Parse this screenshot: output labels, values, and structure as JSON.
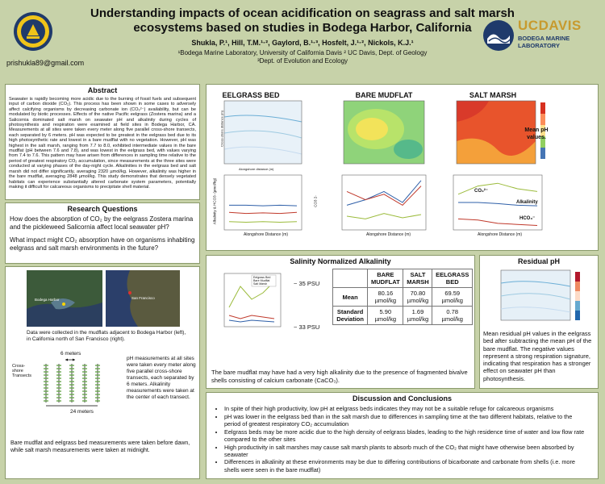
{
  "header": {
    "title": "Understanding impacts of ocean acidification on seagrass and salt marsh ecosystems based on studies in Bodega Harbor, California",
    "authors": "Shukla, P.¹, Hill, T.M.¹·², Gaylord, B.¹·³, Hosfelt, J.¹·², Nickols, K.J.¹",
    "affiliation1": "¹Bodega Marine Laboratory, University of California Davis ² UC Davis, Dept. of Geology",
    "affiliation2": "³Dept. of Evolution and Ecology",
    "email": "prishukla89@gmail.com",
    "logo_uc": "UC",
    "logo_davis": "DAVIS",
    "logo_bml1": "BODEGA MARINE",
    "logo_bml2": "LABORATORY"
  },
  "abstract": {
    "title": "Abstract",
    "text": "Seawater is rapidly becoming more acidic due to the burning of fossil fuels and subsequent input of carbon dioxide (CO₂). This process has been shown in some cases to adversely affect calcifying organisms by decreasing carbonate ion (CO₃²⁻) availability, but can be modulated by biotic processes. Effects of the native Pacific eelgrass (Zostera marina) and a Salicornia dominated salt marsh on seawater pH and alkalinity during cycles of photosynthesis and respiration were examined at field sites in Bodega Harbor, CA. Measurements at all sites were taken every meter along five parallel cross-shore transects, each separated by 6 meters. pH was expected to be greatest in the eelgrass bed due to its high photosynthetic rate and lowest in a bare mudflat with no vegetation. However, pH was highest in the salt marsh, ranging from 7.7 to 8.0, exhibited intermediate values in the bare mudflat (pH between 7.6 and 7.8), and was lowest in the eelgrass bed, with values varying from 7.4 to 7.6. This pattern may have arisen from differences in sampling time relative to the period of greatest respiratory CO₂ accumulation, since measurements at the three sites were conducted at varying phases of the day-night cycle. Alkalinities in the eelgrass bed and salt marsh did not differ significantly, averaging 2320 µmol/kg. However, alkalinity was higher in the bare mudflat, averaging 2848 µmol/kg. This study demonstrates that densely vegetated habitats can experience substantially altered carbonate system parameters, potentially making it difficult for calcareous organisms to precipitate shell material."
  },
  "research": {
    "title": "Research Questions",
    "q1": "How does the absorption of CO₂ by the eelgrass Zostera marina and the pickleweed Salicornia affect local seawater pH?",
    "q2": "What impact might CO₂ absorption have on organisms inhabiting eelgrass and salt marsh environments in the future?"
  },
  "site": {
    "map_label": "Bodega Harbor",
    "map_label2": "San Francisco",
    "caption": "Data were collected in the mudflats adjacent to Bodega Harbor (left), in California north of San Francisco (right).",
    "spacing_label": "6 meters",
    "length_label": "24 meters",
    "axis_label": "Cross-shore Transects",
    "pH_text": "pH measurements at all sites were taken every meter along five parallel cross-shore transects, each separated by 6 meters. Alkalinity measurements were taken at the center of each transect.",
    "bottom_note": "Bare mudflat and eelgrass bed measurements were taken before dawn, while salt marsh measurements were taken at midnight."
  },
  "sites_panel": {
    "eelgrass_title": "EELGRASS BED",
    "mudflat_title": "BARE MUDFLAT",
    "saltmarsh_title": "SALT MARSH",
    "contour_ylabel": "Cross-shore distance (m)",
    "contour_xlabel": "Alongshore distance (m)",
    "mean_ph_note": "Mean pH values.",
    "line_ylabel": "Alkalinity & HCO3- (µmol/kg)",
    "line_y2label": "CO3 2-",
    "line_xlabel": "Alongshore Distance (m)",
    "co3_label": "CO₃²⁻",
    "alk_label": "Alkalinity",
    "hco3_label": "HCO₃⁻"
  },
  "salinity": {
    "title": "Salinity Normalized Alkalinity",
    "label_35": "~ 35 PSU",
    "label_33": "~ 33 PSU",
    "ylabel": "Alkalinity (µmol/kg)",
    "xlabel": "Alongshore Distance (m)",
    "legend": [
      "Eelgrass Bed",
      "Bare Mudflat",
      "Salt Marsh"
    ],
    "table": {
      "headers": [
        "",
        "BARE MUDFLAT",
        "SALT MARSH",
        "EELGRASS BED"
      ],
      "rows": [
        {
          "label": "Mean",
          "values": [
            "80.16 µmol/kg",
            "70.80 µmol/kg",
            "69.59 µmol/kg"
          ]
        },
        {
          "label": "Standard Deviation",
          "values": [
            "5.90 µmol/kg",
            "1.69 µmol/kg",
            "0.78 µmol/kg"
          ]
        }
      ]
    },
    "note": "The bare mudflat may have had a very high alkalinity due to the presence of fragmented bivalve shells consisting of calcium carbonate (CaCO₃)."
  },
  "residual": {
    "title": "Residual pH",
    "text": "Mean residual pH values in the eelgrass bed after subtracting the mean pH of the bare mudflat. The negative values represent a strong respiration signature, indicating that respiration has a stronger effect on seawater pH than photosynthesis."
  },
  "discussion": {
    "title": "Discussion and Conclusions",
    "bullets": [
      "In spite of their high productivity, low pH at eelgrass beds indicates they may not be a suitable refuge for calcareous organisms",
      "pH was lower in the eelgrass bed than in the salt marsh due to differences in sampling time at the two different habitats, relative to the period of greatest respiratory CO₂ accumulation",
      "Eelgrass beds may be more acidic due to the high density of eelgrass blades, leading to the high residence time of water and low flow rate compared to the other sites",
      "High productivity in salt marshes may cause salt marsh plants to absorb much of the CO₂ that might have otherwise been absorbed by seawater",
      "Differences in alkalinity at these environments may be due to differing contributions of bicarbonate and carbonate from shells (i.e. more shells were seen in the bare mudflat)"
    ]
  },
  "colors": {
    "background": "#c7d2a9",
    "panel_border": "#8a9a6a",
    "alk_line": "#2e5fa8",
    "hco3_line": "#c0392b",
    "co3_line": "#9bbb3b"
  }
}
